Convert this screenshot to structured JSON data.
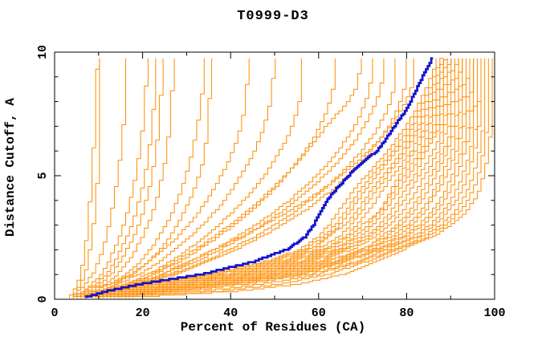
{
  "chart_data": {
    "type": "line",
    "title": "T0999-D3",
    "xlabel": "Percent of Residues (CA)",
    "ylabel": "Distance Cutoff, A",
    "xlim": [
      0,
      100
    ],
    "ylim": [
      0,
      10
    ],
    "grid": false,
    "legend": "none",
    "x_ticks": {
      "major": [
        0,
        20,
        40,
        60,
        80,
        100
      ],
      "minor": [
        10,
        30,
        50,
        70,
        90
      ],
      "labels": [
        "0",
        "20",
        "40",
        "60",
        "80",
        "100"
      ]
    },
    "y_ticks": {
      "major": [
        0,
        5,
        10
      ],
      "minor": [
        1,
        2,
        3,
        4,
        6,
        7,
        8,
        9
      ],
      "labels": [
        "0",
        "5",
        "10"
      ]
    },
    "colors": {
      "background": "#ffffff",
      "axis": "#000000",
      "models": "#ff8c00",
      "highlighted_model": "#1414cc"
    },
    "cutoffs": [
      0.05,
      0.3,
      0.6,
      1,
      1.5,
      2,
      2.5,
      3,
      3.5,
      4,
      4.5,
      5,
      5.5,
      6,
      6.5,
      7,
      7.5,
      8,
      8.5,
      9,
      9.5,
      9.75
    ],
    "series": [
      {
        "color": "models",
        "percents": [
          3.5,
          4.5,
          5.2,
          6,
          6.5,
          7,
          7.3,
          7.6,
          7.9,
          8.1,
          8.3,
          8.5,
          8.7,
          8.9,
          9,
          9.2,
          9.3,
          9.5,
          9.6,
          9.7,
          9.85,
          9.9
        ]
      },
      {
        "color": "models",
        "percents": [
          4,
          5,
          6,
          7,
          7.6,
          8.1,
          8.5,
          8.9,
          9.2,
          9.5,
          9.7,
          9.9,
          10,
          10.1,
          10.2,
          10.3,
          10.4,
          10.45,
          10.5,
          10.55,
          10.6,
          10.6
        ]
      },
      {
        "color": "models",
        "percents": [
          4,
          5.5,
          7,
          8.8,
          10,
          11,
          11.8,
          12.4,
          13,
          13.5,
          14,
          14.4,
          14.8,
          15.1,
          15.4,
          15.7,
          15.9,
          16.1,
          16.25,
          16.4,
          16.5,
          16.5
        ]
      },
      {
        "color": "models",
        "percents": [
          4.5,
          6.5,
          8.5,
          10.8,
          12.4,
          13.6,
          14.8,
          15.8,
          16.6,
          17.3,
          17.9,
          18.5,
          19,
          19.4,
          19.8,
          20.1,
          20.4,
          20.6,
          20.8,
          20.9,
          21,
          21
        ]
      },
      {
        "color": "models",
        "percents": [
          5,
          7,
          9.5,
          12,
          13.8,
          15.2,
          16.5,
          17.6,
          18.5,
          19.3,
          20,
          20.6,
          21.1,
          21.5,
          21.9,
          22.2,
          22.45,
          22.65,
          22.8,
          22.9,
          23.1,
          23.2
        ]
      },
      {
        "color": "models",
        "percents": [
          5,
          7.5,
          10.5,
          13,
          15,
          16.5,
          18,
          19.2,
          20.1,
          20.9,
          21.6,
          22.2,
          22.7,
          23.1,
          23.45,
          23.75,
          24,
          24.15,
          24.3,
          24.4,
          24.5,
          24.5
        ]
      },
      {
        "color": "models",
        "percents": [
          5.5,
          8.5,
          11.5,
          14.5,
          16.8,
          18.5,
          20,
          21.3,
          22.3,
          23.2,
          23.9,
          24.5,
          25.1,
          25.5,
          25.9,
          26.2,
          26.45,
          26.65,
          26.8,
          26.9,
          27,
          27
        ]
      },
      {
        "color": "models",
        "percents": [
          5.5,
          9,
          13,
          16.5,
          19.5,
          21.8,
          23.8,
          25.4,
          26.8,
          28,
          29,
          29.9,
          30.7,
          31.4,
          32,
          32.5,
          33,
          33.4,
          33.7,
          34,
          34.2,
          34.3
        ]
      },
      {
        "color": "models",
        "percents": [
          6,
          10,
          14,
          18,
          21.5,
          24,
          26.2,
          28,
          29.5,
          30.8,
          31.9,
          32.9,
          33.7,
          34.2,
          34.6,
          34.9,
          35.1,
          35.25,
          35.35,
          35.45,
          35.5,
          35.5
        ]
      },
      {
        "color": "models",
        "percents": [
          6,
          9,
          13,
          17.5,
          21.5,
          25,
          28,
          30.5,
          32.8,
          34.8,
          36.5,
          38,
          39.4,
          40.6,
          41.6,
          42.4,
          43,
          43.4,
          43.7,
          43.9,
          44,
          44
        ]
      },
      {
        "color": "models",
        "percents": [
          6.5,
          10,
          14.5,
          19.5,
          24,
          27.5,
          30.8,
          33.8,
          36.4,
          38.7,
          40.7,
          42.5,
          44.1,
          45.5,
          46.7,
          47.7,
          48.5,
          49.1,
          49.5,
          49.8,
          50,
          50
        ]
      },
      {
        "color": "models",
        "percents": [
          7,
          11,
          16,
          21.5,
          26.5,
          30.5,
          34.2,
          37.5,
          40.5,
          43.2,
          45.6,
          47.8,
          49.7,
          51.4,
          52.9,
          54.1,
          55,
          55.7,
          56.1,
          56.4,
          56.5,
          56.5
        ]
      },
      {
        "color": "models",
        "percents": [
          7,
          11.5,
          17,
          23,
          28.5,
          33,
          37.2,
          41,
          44.4,
          47.5,
          50.3,
          52.8,
          55.1,
          57.1,
          58.9,
          60.4,
          61.7,
          62.7,
          63.4,
          63.8,
          64,
          64
        ]
      },
      {
        "color": "models",
        "percents": [
          7.5,
          12,
          17,
          22.5,
          27.5,
          32,
          36.2,
          40,
          43.5,
          46.8,
          49.8,
          52.6,
          55.2,
          57.6,
          59.8,
          61.8,
          64.5,
          67,
          68.5,
          69.2,
          69.5,
          69.5
        ]
      },
      {
        "color": "models",
        "percents": [
          8,
          13,
          18,
          25,
          31,
          36.5,
          41.5,
          46,
          50,
          53.6,
          56.8,
          59.7,
          62.3,
          64.6,
          66.6,
          68.3,
          69.7,
          70.8,
          71.6,
          72.1,
          72.4,
          72.5
        ]
      },
      {
        "color": "models",
        "percents": [
          8,
          13,
          19,
          26,
          32.5,
          38,
          43,
          47.5,
          51.5,
          55.2,
          58.5,
          61.5,
          64.2,
          66.6,
          68.7,
          70.5,
          72,
          73.2,
          74.1,
          74.7,
          75,
          75
        ]
      },
      {
        "color": "models",
        "percents": [
          8.5,
          14,
          20,
          27,
          34,
          40,
          45.5,
          50.3,
          54.5,
          58.3,
          61.7,
          64.8,
          67.5,
          69.9,
          72,
          73.8,
          75.3,
          76.4,
          77.1,
          77.4,
          77.5,
          77.5
        ]
      },
      {
        "color": "models",
        "percents": [
          9,
          14,
          20,
          28,
          35,
          41.5,
          47,
          52,
          56.4,
          60.3,
          63.8,
          66.9,
          69.7,
          72.1,
          74.3,
          76.1,
          77.6,
          78.7,
          79.5,
          79.9,
          80,
          80
        ]
      },
      {
        "color": "models",
        "percents": [
          7.5,
          12.5,
          18,
          24.5,
          30.5,
          36.5,
          42.5,
          48,
          53,
          57.5,
          61.6,
          65.3,
          68.6,
          71.6,
          74.2,
          76.5,
          78.4,
          80,
          81.1,
          81.7,
          82,
          82
        ]
      },
      {
        "color": "models",
        "percents": [
          8,
          13.5,
          22,
          36,
          48,
          56,
          60,
          62.5,
          64.5,
          66.5,
          68.5,
          71,
          73.5,
          76,
          78,
          80,
          81.7,
          83.2,
          84.5,
          85.7,
          86.8,
          87
        ]
      },
      {
        "color": "models",
        "percents": [
          8.4,
          14,
          23,
          37,
          49,
          57,
          61,
          64,
          66,
          68,
          70,
          72.3,
          74.7,
          77.1,
          79,
          81,
          82.6,
          84,
          85.3,
          86.4,
          87.5,
          88
        ]
      },
      {
        "color": "models",
        "percents": [
          8.7,
          15,
          24,
          38,
          50,
          58,
          62.3,
          65,
          67.1,
          69.1,
          71,
          73.4,
          75.7,
          78,
          80,
          81.7,
          83.3,
          84.7,
          85.9,
          87,
          88,
          88.5
        ]
      },
      {
        "color": "models",
        "percents": [
          9.1,
          15.8,
          25.4,
          39.6,
          51.4,
          59.3,
          61.8,
          66.4,
          68.6,
          70.6,
          72.5,
          74.7,
          77,
          79.2,
          80.9,
          82.7,
          84.2,
          85.5,
          86.6,
          87.7,
          88.6,
          89
        ]
      },
      {
        "color": "models",
        "percents": [
          9.4,
          16.5,
          26.3,
          40.7,
          52.3,
          60.2,
          64.7,
          67.5,
          69.7,
          71.7,
          73.6,
          75.8,
          77.9,
          80,
          81.8,
          83.5,
          84.9,
          86.2,
          87.2,
          88.2,
          89.1,
          89.5
        ]
      },
      {
        "color": "models",
        "percents": [
          9.8,
          17.3,
          27.5,
          42,
          53.5,
          61.4,
          66,
          68.9,
          71.2,
          73.2,
          75,
          77.1,
          79.2,
          81.2,
          82.8,
          84.4,
          85.8,
          87,
          88,
          88.9,
          89.7,
          90
        ]
      },
      {
        "color": "models",
        "percents": [
          10.2,
          18,
          28.5,
          43,
          54.5,
          62.3,
          67,
          70.1,
          74,
          75.5,
          76.8,
          78.5,
          80.2,
          82.1,
          83.7,
          85.2,
          86.5,
          87.6,
          88.6,
          89.4,
          90.2,
          90.5
        ]
      },
      {
        "color": "models",
        "percents": [
          10.6,
          18.8,
          29.7,
          44.3,
          55.7,
          63.5,
          68.3,
          71.5,
          73.8,
          75.8,
          77.6,
          79.5,
          81.4,
          83.2,
          84.7,
          86.2,
          87.4,
          88.5,
          89.4,
          90.2,
          90.9,
          91
        ]
      },
      {
        "color": "models",
        "percents": [
          10.9,
          19.4,
          30.6,
          45.4,
          56.6,
          64.5,
          69.4,
          72.6,
          74.9,
          76.9,
          78.7,
          80.6,
          82.4,
          84.1,
          85.6,
          87,
          88.1,
          89.1,
          90,
          90.8,
          91.4,
          91.5
        ]
      },
      {
        "color": "models",
        "percents": [
          11.3,
          20.3,
          31.8,
          46.7,
          57.8,
          65.6,
          70.7,
          74,
          76.4,
          78.4,
          80.1,
          81.9,
          83.3,
          84.6,
          86.2,
          87.9,
          89,
          89.9,
          90.8,
          91.5,
          92,
          92
        ]
      },
      {
        "color": "models",
        "percents": [
          11.6,
          20.9,
          32.8,
          47.7,
          58.8,
          66.6,
          71.7,
          75.1,
          77.6,
          79.6,
          81.2,
          83,
          84.6,
          86.2,
          87.5,
          88.7,
          89.7,
          90.6,
          91.4,
          92.1,
          92.5,
          92.5
        ]
      },
      {
        "color": "models",
        "percents": [
          12,
          21.8,
          34,
          49,
          60,
          67.8,
          73,
          76.5,
          79,
          81,
          82.7,
          84.3,
          85.9,
          87.3,
          88.5,
          89.7,
          90.6,
          91.4,
          92.1,
          92.8,
          93,
          93
        ]
      },
      {
        "color": "models",
        "percents": [
          12.4,
          22.6,
          35.2,
          50.3,
          61.2,
          71,
          74.3,
          77.9,
          80.5,
          82.5,
          84.1,
          85.6,
          87.1,
          88.4,
          89.6,
          90.6,
          91.5,
          92.2,
          92.9,
          93.4,
          93.5,
          93.5
        ]
      },
      {
        "color": "models",
        "percents": [
          12.7,
          23.2,
          36.2,
          51.3,
          62.2,
          69.9,
          75.3,
          79,
          81.6,
          83.6,
          85.2,
          86.7,
          88.1,
          89.3,
          90.4,
          91.4,
          92.2,
          92.9,
          93.5,
          94,
          94,
          94
        ]
      },
      {
        "color": "models",
        "percents": [
          13.1,
          24.1,
          37.4,
          52.6,
          63.4,
          71,
          76.6,
          80.4,
          83.1,
          85.1,
          86.6,
          88,
          89.3,
          90.5,
          91.4,
          92.4,
          93.1,
          93.7,
          94.3,
          94.5,
          94.5,
          94.5
        ]
      },
      {
        "color": "models",
        "percents": [
          13.4,
          24.7,
          38.3,
          53.7,
          64.3,
          72,
          77.7,
          81.5,
          84.2,
          85.7,
          87.7,
          89.1,
          90.3,
          91.4,
          92.3,
          93.1,
          93.8,
          94.4,
          94.9,
          95,
          95,
          95
        ]
      },
      {
        "color": "models",
        "percents": [
          13.8,
          25.5,
          39.5,
          55,
          65.5,
          73.2,
          79,
          82.9,
          85.7,
          87.7,
          89.2,
          90.4,
          91.5,
          92.5,
          93.3,
          94.1,
          94.7,
          95.2,
          95.5,
          95.5,
          95.5,
          95.5
        ]
      },
      {
        "color": "models",
        "percents": [
          14.2,
          26.2,
          40.5,
          56,
          66.5,
          74.1,
          80,
          84,
          86.8,
          88.8,
          90.3,
          91.5,
          92.5,
          93.4,
          94.2,
          94.9,
          95.4,
          95.8,
          96,
          96,
          96,
          96
        ]
      },
      {
        "color": "models",
        "percents": [
          14.6,
          28,
          41.7,
          57.3,
          64.5,
          75.3,
          81.3,
          85.5,
          88.3,
          90.3,
          91.7,
          92.8,
          93.8,
          94.6,
          95.2,
          95.8,
          96.2,
          96.5,
          96.5,
          96.5,
          96.5,
          96.5
        ]
      },
      {
        "color": "models",
        "percents": [
          15,
          30,
          44,
          58.4,
          68.6,
          76.1,
          82.4,
          86.6,
          89.4,
          91.4,
          92.8,
          93.9,
          94.7,
          95.5,
          96,
          96.5,
          96.8,
          97,
          97,
          97,
          97,
          97
        ]
      },
      {
        "color": "models",
        "percents": [
          16,
          34,
          48,
          60,
          69.8,
          77.4,
          83.6,
          88,
          90.9,
          92.9,
          94.2,
          95.2,
          96,
          96.6,
          97.1,
          97.5,
          97.8,
          98,
          98,
          98,
          98,
          98
        ]
      },
      {
        "color": "models",
        "percents": [
          17,
          38,
          52,
          62.5,
          71,
          78.3,
          84.7,
          89.1,
          92.1,
          94.1,
          95.4,
          96.3,
          97,
          97.6,
          98,
          98.4,
          98.7,
          98.9,
          99,
          99,
          99,
          99
        ]
      },
      {
        "color": "models",
        "percents": [
          18,
          42,
          56,
          66,
          73,
          79.5,
          86,
          90.5,
          93.5,
          95.5,
          96.8,
          97.6,
          98.2,
          98.6,
          99,
          99.3,
          99.5,
          99.65,
          99.75,
          99.8,
          99.8,
          99.8
        ]
      },
      {
        "color": "highlighted_model",
        "highlight": true,
        "percents": [
          7,
          12,
          20,
          34,
          45.5,
          53,
          57,
          59,
          60.5,
          62,
          64.5,
          67,
          70,
          73.5,
          75.5,
          77.4,
          79.5,
          81,
          82.4,
          83.8,
          85.2,
          86
        ]
      }
    ]
  }
}
